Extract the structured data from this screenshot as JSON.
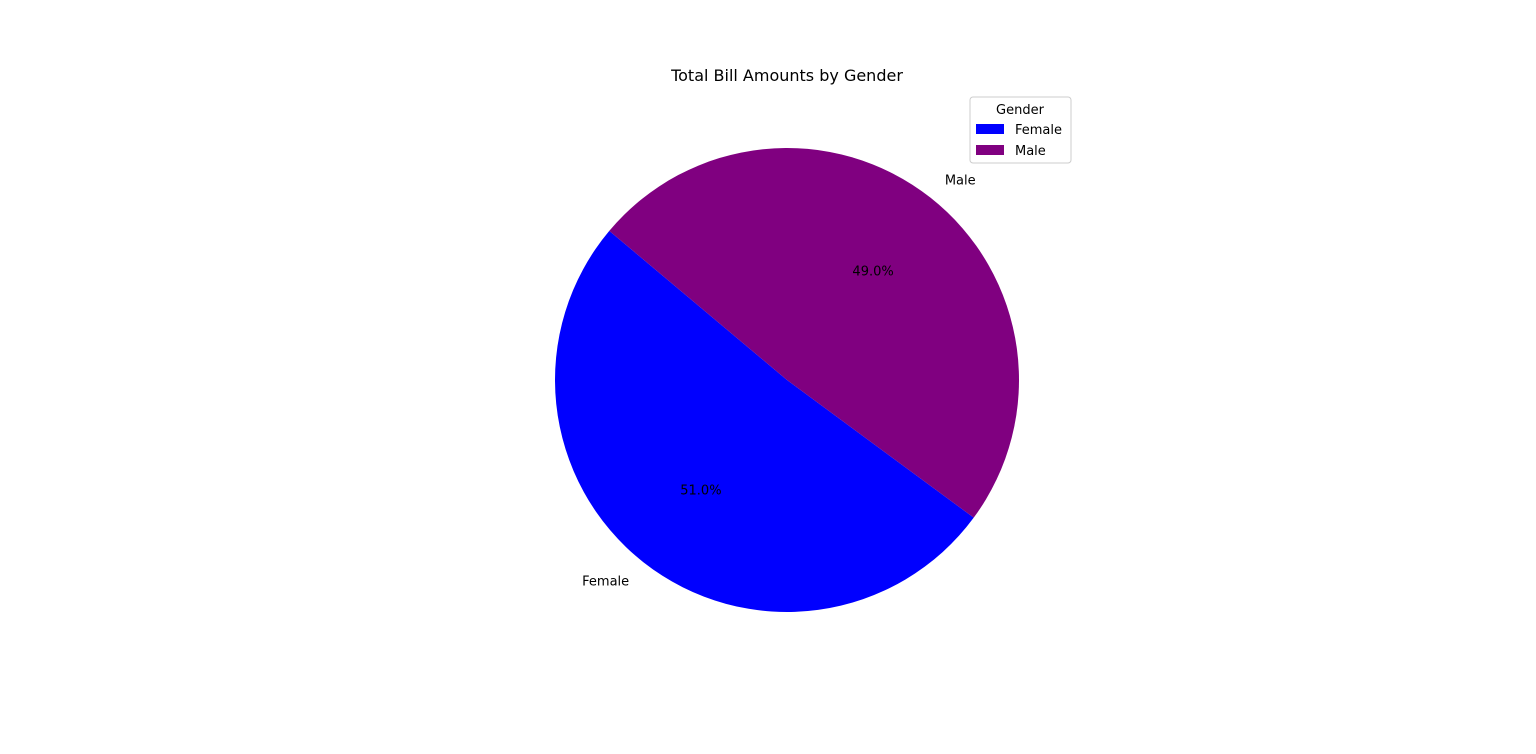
{
  "chart_data": {
    "type": "pie",
    "title": "Total Bill Amounts by Gender",
    "categories": [
      "Female",
      "Male"
    ],
    "values": [
      51.0,
      49.0
    ],
    "percent_labels": [
      "51.0%",
      "49.0%"
    ],
    "colors": [
      "#0000ff",
      "#800080"
    ],
    "start_angle_deg": 140,
    "legend": {
      "title": "Gender",
      "entries": [
        "Female",
        "Male"
      ],
      "placement": "top-right"
    }
  }
}
